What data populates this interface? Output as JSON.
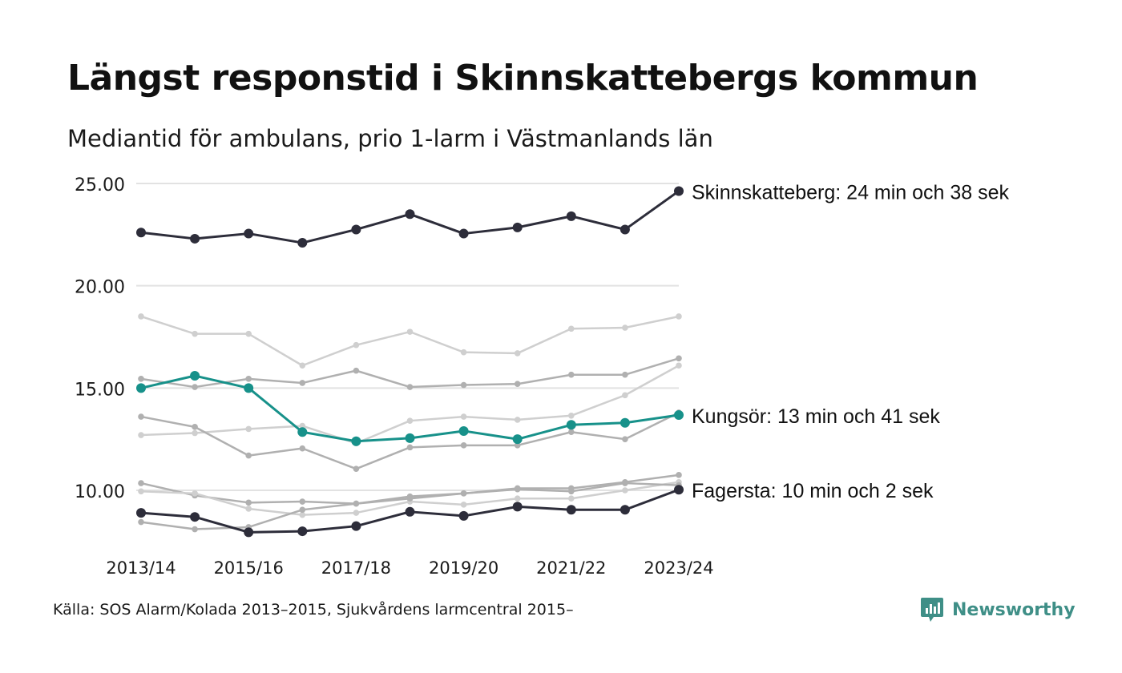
{
  "title": "Längst responstid i Skinnskattebergs kommun",
  "subtitle": "Mediantid för ambulans, prio 1-larm i Västmanlands län",
  "source": "Källa: SOS Alarm/Kolada 2013–2015, Sjukvårdens larmcentral 2015–",
  "brand": {
    "name": "Newsworthy",
    "icon": "newsworthy-logo-icon",
    "color": "#3f8f87"
  },
  "chart_data": {
    "type": "line",
    "x": [
      "2013/14",
      "2014/15",
      "2015/16",
      "2016/17",
      "2017/18",
      "2018/19",
      "2019/20",
      "2020/21",
      "2021/22",
      "2022/23",
      "2023/24"
    ],
    "x_tick_labels": [
      "2013/14",
      "2015/16",
      "2017/18",
      "2019/20",
      "2021/22",
      "2023/24"
    ],
    "ylim": [
      7.5,
      25.5
    ],
    "y_ticks": [
      "25.00",
      "20.00",
      "15.00",
      "10.00"
    ],
    "y_tick_values": [
      25,
      20,
      15,
      10
    ],
    "grid": "horizontal",
    "colors": {
      "highlight_dark": "#2d2d3a",
      "highlight_teal": "#17918a",
      "gray_light": "#cfcfcf",
      "gray_mid": "#b0b0b0"
    },
    "series": [
      {
        "name": "Skinnskatteberg",
        "role": "highlight_dark",
        "label": "Skinnskatteberg: 24 min och 38 sek",
        "values": [
          22.6,
          22.3,
          22.55,
          22.1,
          22.75,
          23.5,
          22.55,
          22.85,
          23.4,
          22.75,
          24.63
        ]
      },
      {
        "name": "Kungsör",
        "role": "highlight_teal",
        "label": "Kungsör: 13 min och 41 sek",
        "values": [
          15.0,
          15.6,
          15.0,
          12.85,
          12.4,
          12.55,
          12.9,
          12.5,
          13.2,
          13.3,
          13.68
        ]
      },
      {
        "name": "Fagersta",
        "role": "highlight_dark",
        "label": "Fagersta: 10 min och 2 sek",
        "values": [
          8.9,
          8.7,
          7.95,
          8.0,
          8.25,
          8.95,
          8.75,
          9.2,
          9.05,
          9.05,
          10.03
        ]
      },
      {
        "role": "gray_light",
        "values": [
          18.5,
          17.65,
          17.65,
          16.1,
          17.1,
          17.75,
          16.75,
          16.7,
          17.9,
          17.95,
          18.5
        ]
      },
      {
        "role": "gray_mid",
        "values": [
          15.45,
          15.05,
          15.45,
          15.25,
          15.85,
          15.05,
          15.15,
          15.2,
          15.65,
          15.65,
          16.45
        ]
      },
      {
        "role": "gray_light",
        "values": [
          12.7,
          12.8,
          13.0,
          13.15,
          12.3,
          13.4,
          13.6,
          13.45,
          13.65,
          14.65,
          16.1
        ]
      },
      {
        "role": "gray_mid",
        "values": [
          13.6,
          13.1,
          11.7,
          12.05,
          11.05,
          12.1,
          12.2,
          12.2,
          12.85,
          12.5,
          13.8
        ]
      },
      {
        "role": "gray_mid",
        "values": [
          10.35,
          9.75,
          9.4,
          9.45,
          9.35,
          9.7,
          9.85,
          10.1,
          10.1,
          10.4,
          10.75
        ]
      },
      {
        "role": "gray_light",
        "values": [
          9.95,
          9.85,
          9.1,
          8.8,
          8.9,
          9.45,
          9.3,
          9.6,
          9.6,
          10.0,
          10.4
        ]
      },
      {
        "role": "gray_mid",
        "values": [
          8.45,
          8.1,
          8.2,
          9.05,
          9.35,
          9.6,
          9.85,
          10.05,
          9.95,
          10.35,
          10.25
        ]
      }
    ]
  }
}
